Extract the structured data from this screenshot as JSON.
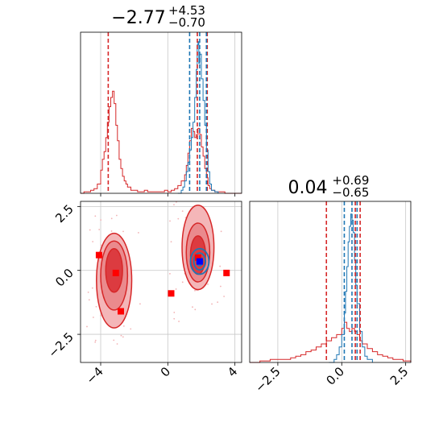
{
  "colors": {
    "red": "#d62728",
    "blue": "#1f77b4",
    "grid": "#c8c8c8"
  },
  "chart_data": [
    {
      "type": "histogram",
      "panel": "top-left",
      "title": {
        "base": "−2.77",
        "sup": "+4.53",
        "sub": "−0.70"
      },
      "xlim": [
        -5.2,
        4.4
      ],
      "grid": true,
      "red_quantile_lines": [
        -3.55,
        1.76,
        2.35
      ],
      "blue_quantile_lines": [
        1.3,
        1.9,
        2.3
      ],
      "red_hist": {
        "x": [
          -5.2,
          -5.0,
          -4.8,
          -4.6,
          -4.4,
          -4.2,
          -4.0,
          -3.9,
          -3.8,
          -3.7,
          -3.6,
          -3.5,
          -3.4,
          -3.3,
          -3.2,
          -3.1,
          -3.0,
          -2.9,
          -2.8,
          -2.7,
          -2.6,
          -2.5,
          -2.4,
          -2.2,
          -2.0,
          -1.8,
          -1.6,
          -1.4,
          -1.2,
          -1.0,
          -0.8,
          -0.6,
          -0.4,
          -0.2,
          0.0,
          0.2,
          0.4,
          0.6,
          0.8,
          1.0,
          1.1,
          1.2,
          1.3,
          1.4,
          1.5,
          1.6,
          1.7,
          1.8,
          1.9,
          2.0,
          2.1,
          2.2,
          2.3,
          2.4,
          2.5,
          2.6,
          2.8,
          3.0,
          3.4,
          3.8,
          4.4
        ],
        "y": [
          0.0,
          0.01,
          0.01,
          0.02,
          0.03,
          0.06,
          0.15,
          0.22,
          0.27,
          0.36,
          0.46,
          0.56,
          0.62,
          0.66,
          0.58,
          0.44,
          0.34,
          0.22,
          0.16,
          0.11,
          0.08,
          0.06,
          0.04,
          0.02,
          0.02,
          0.01,
          0.01,
          0.02,
          0.01,
          0.01,
          0.01,
          0.01,
          0.01,
          0.02,
          0.01,
          0.02,
          0.03,
          0.05,
          0.08,
          0.12,
          0.18,
          0.26,
          0.34,
          0.42,
          0.4,
          0.36,
          0.38,
          0.42,
          0.38,
          0.3,
          0.24,
          0.16,
          0.1,
          0.05,
          0.03,
          0.02,
          0.01,
          0.01,
          0.0,
          0.0,
          0.0
        ]
      },
      "blue_hist": {
        "x": [
          0.6,
          0.8,
          0.9,
          1.0,
          1.1,
          1.2,
          1.3,
          1.4,
          1.5,
          1.6,
          1.7,
          1.75,
          1.8,
          1.85,
          1.9,
          2.0,
          2.1,
          2.2,
          2.3,
          2.4,
          2.5,
          2.6,
          2.8,
          3.0
        ],
        "y": [
          0.0,
          0.02,
          0.04,
          0.08,
          0.14,
          0.2,
          0.28,
          0.36,
          0.46,
          0.62,
          0.8,
          0.96,
          0.98,
          0.84,
          0.9,
          0.74,
          0.6,
          0.44,
          0.28,
          0.14,
          0.06,
          0.02,
          0.01,
          0.0
        ]
      }
    },
    {
      "type": "histogram",
      "panel": "bottom-right",
      "title": {
        "base": "0.04",
        "sup": "+0.69",
        "sub": "−0.65"
      },
      "xlim": [
        -3.6,
        2.7
      ],
      "xticks": [
        -2.5,
        0.0,
        2.5
      ],
      "xtick_labels": [
        "−2.5",
        "0.0",
        "2.5"
      ],
      "grid": true,
      "red_quantile_lines": [
        -0.6,
        0.53,
        0.72
      ],
      "blue_quantile_lines": [
        0.1,
        0.4,
        0.6
      ],
      "red_hist": {
        "x": [
          -3.6,
          -3.2,
          -3.0,
          -2.8,
          -2.6,
          -2.4,
          -2.2,
          -2.0,
          -1.8,
          -1.6,
          -1.4,
          -1.2,
          -1.0,
          -0.8,
          -0.6,
          -0.4,
          -0.2,
          0.0,
          0.1,
          0.2,
          0.3,
          0.4,
          0.5,
          0.6,
          0.7,
          0.8,
          1.0,
          1.2,
          1.4,
          1.6,
          1.8,
          2.0,
          2.2,
          2.4,
          2.7
        ],
        "y": [
          0.0,
          0.01,
          0.01,
          0.02,
          0.02,
          0.02,
          0.02,
          0.03,
          0.04,
          0.05,
          0.07,
          0.08,
          0.1,
          0.12,
          0.14,
          0.16,
          0.18,
          0.22,
          0.26,
          0.22,
          0.2,
          0.22,
          0.2,
          0.18,
          0.14,
          0.12,
          0.09,
          0.07,
          0.05,
          0.04,
          0.03,
          0.02,
          0.02,
          0.01,
          0.0
        ]
      },
      "blue_hist": {
        "x": [
          -0.5,
          -0.3,
          -0.2,
          -0.1,
          0.0,
          0.1,
          0.15,
          0.2,
          0.25,
          0.3,
          0.35,
          0.4,
          0.45,
          0.5,
          0.55,
          0.6,
          0.7,
          0.8,
          0.9,
          1.0,
          1.2
        ],
        "y": [
          0.0,
          0.02,
          0.05,
          0.1,
          0.18,
          0.32,
          0.46,
          0.62,
          0.78,
          0.88,
          0.96,
          0.92,
          0.84,
          0.66,
          0.5,
          0.38,
          0.2,
          0.1,
          0.04,
          0.02,
          0.0
        ]
      }
    },
    {
      "type": "scatter",
      "subtype": "2d-density-contour",
      "panel": "bottom-left",
      "xlim": [
        -5.2,
        4.4
      ],
      "ylim": [
        -3.6,
        2.7
      ],
      "xticks": [
        -4,
        0,
        4
      ],
      "xtick_labels": [
        "−4",
        "0",
        "4"
      ],
      "yticks": [
        2.5,
        0.0,
        -2.5
      ],
      "ytick_labels": [
        "2.5",
        "0.0",
        "−2.5"
      ],
      "grid": true,
      "red_markers": [
        {
          "x": -4.1,
          "y": 0.6
        },
        {
          "x": -3.1,
          "y": -0.1
        },
        {
          "x": -2.8,
          "y": -1.6
        },
        {
          "x": 0.2,
          "y": -0.9
        },
        {
          "x": 1.8,
          "y": 0.5
        },
        {
          "x": 3.5,
          "y": -0.1
        }
      ],
      "blue_markers": [
        {
          "x": 1.9,
          "y": 0.35
        }
      ],
      "red_regions": [
        {
          "cx": -3.2,
          "cy": -0.4,
          "rx": 1.05,
          "ry": 1.85,
          "level": "outer"
        },
        {
          "cx": -3.2,
          "cy": -0.2,
          "rx": 0.8,
          "ry": 1.35,
          "level": "mid"
        },
        {
          "cx": -3.2,
          "cy": 0.0,
          "rx": 0.5,
          "ry": 0.85,
          "level": "inner"
        },
        {
          "cx": 1.8,
          "cy": 0.9,
          "rx": 0.95,
          "ry": 1.65,
          "level": "outer"
        },
        {
          "cx": 1.8,
          "cy": 0.7,
          "rx": 0.7,
          "ry": 1.15,
          "level": "mid"
        },
        {
          "cx": 1.8,
          "cy": 0.6,
          "rx": 0.45,
          "ry": 0.75,
          "level": "inner"
        }
      ],
      "blue_regions": [
        {
          "cx": 1.9,
          "cy": 0.35,
          "rx": 0.55,
          "ry": 0.5
        },
        {
          "cx": 1.9,
          "cy": 0.35,
          "rx": 0.35,
          "ry": 0.33
        },
        {
          "cx": 1.9,
          "cy": 0.35,
          "rx": 0.18,
          "ry": 0.17
        }
      ]
    }
  ]
}
